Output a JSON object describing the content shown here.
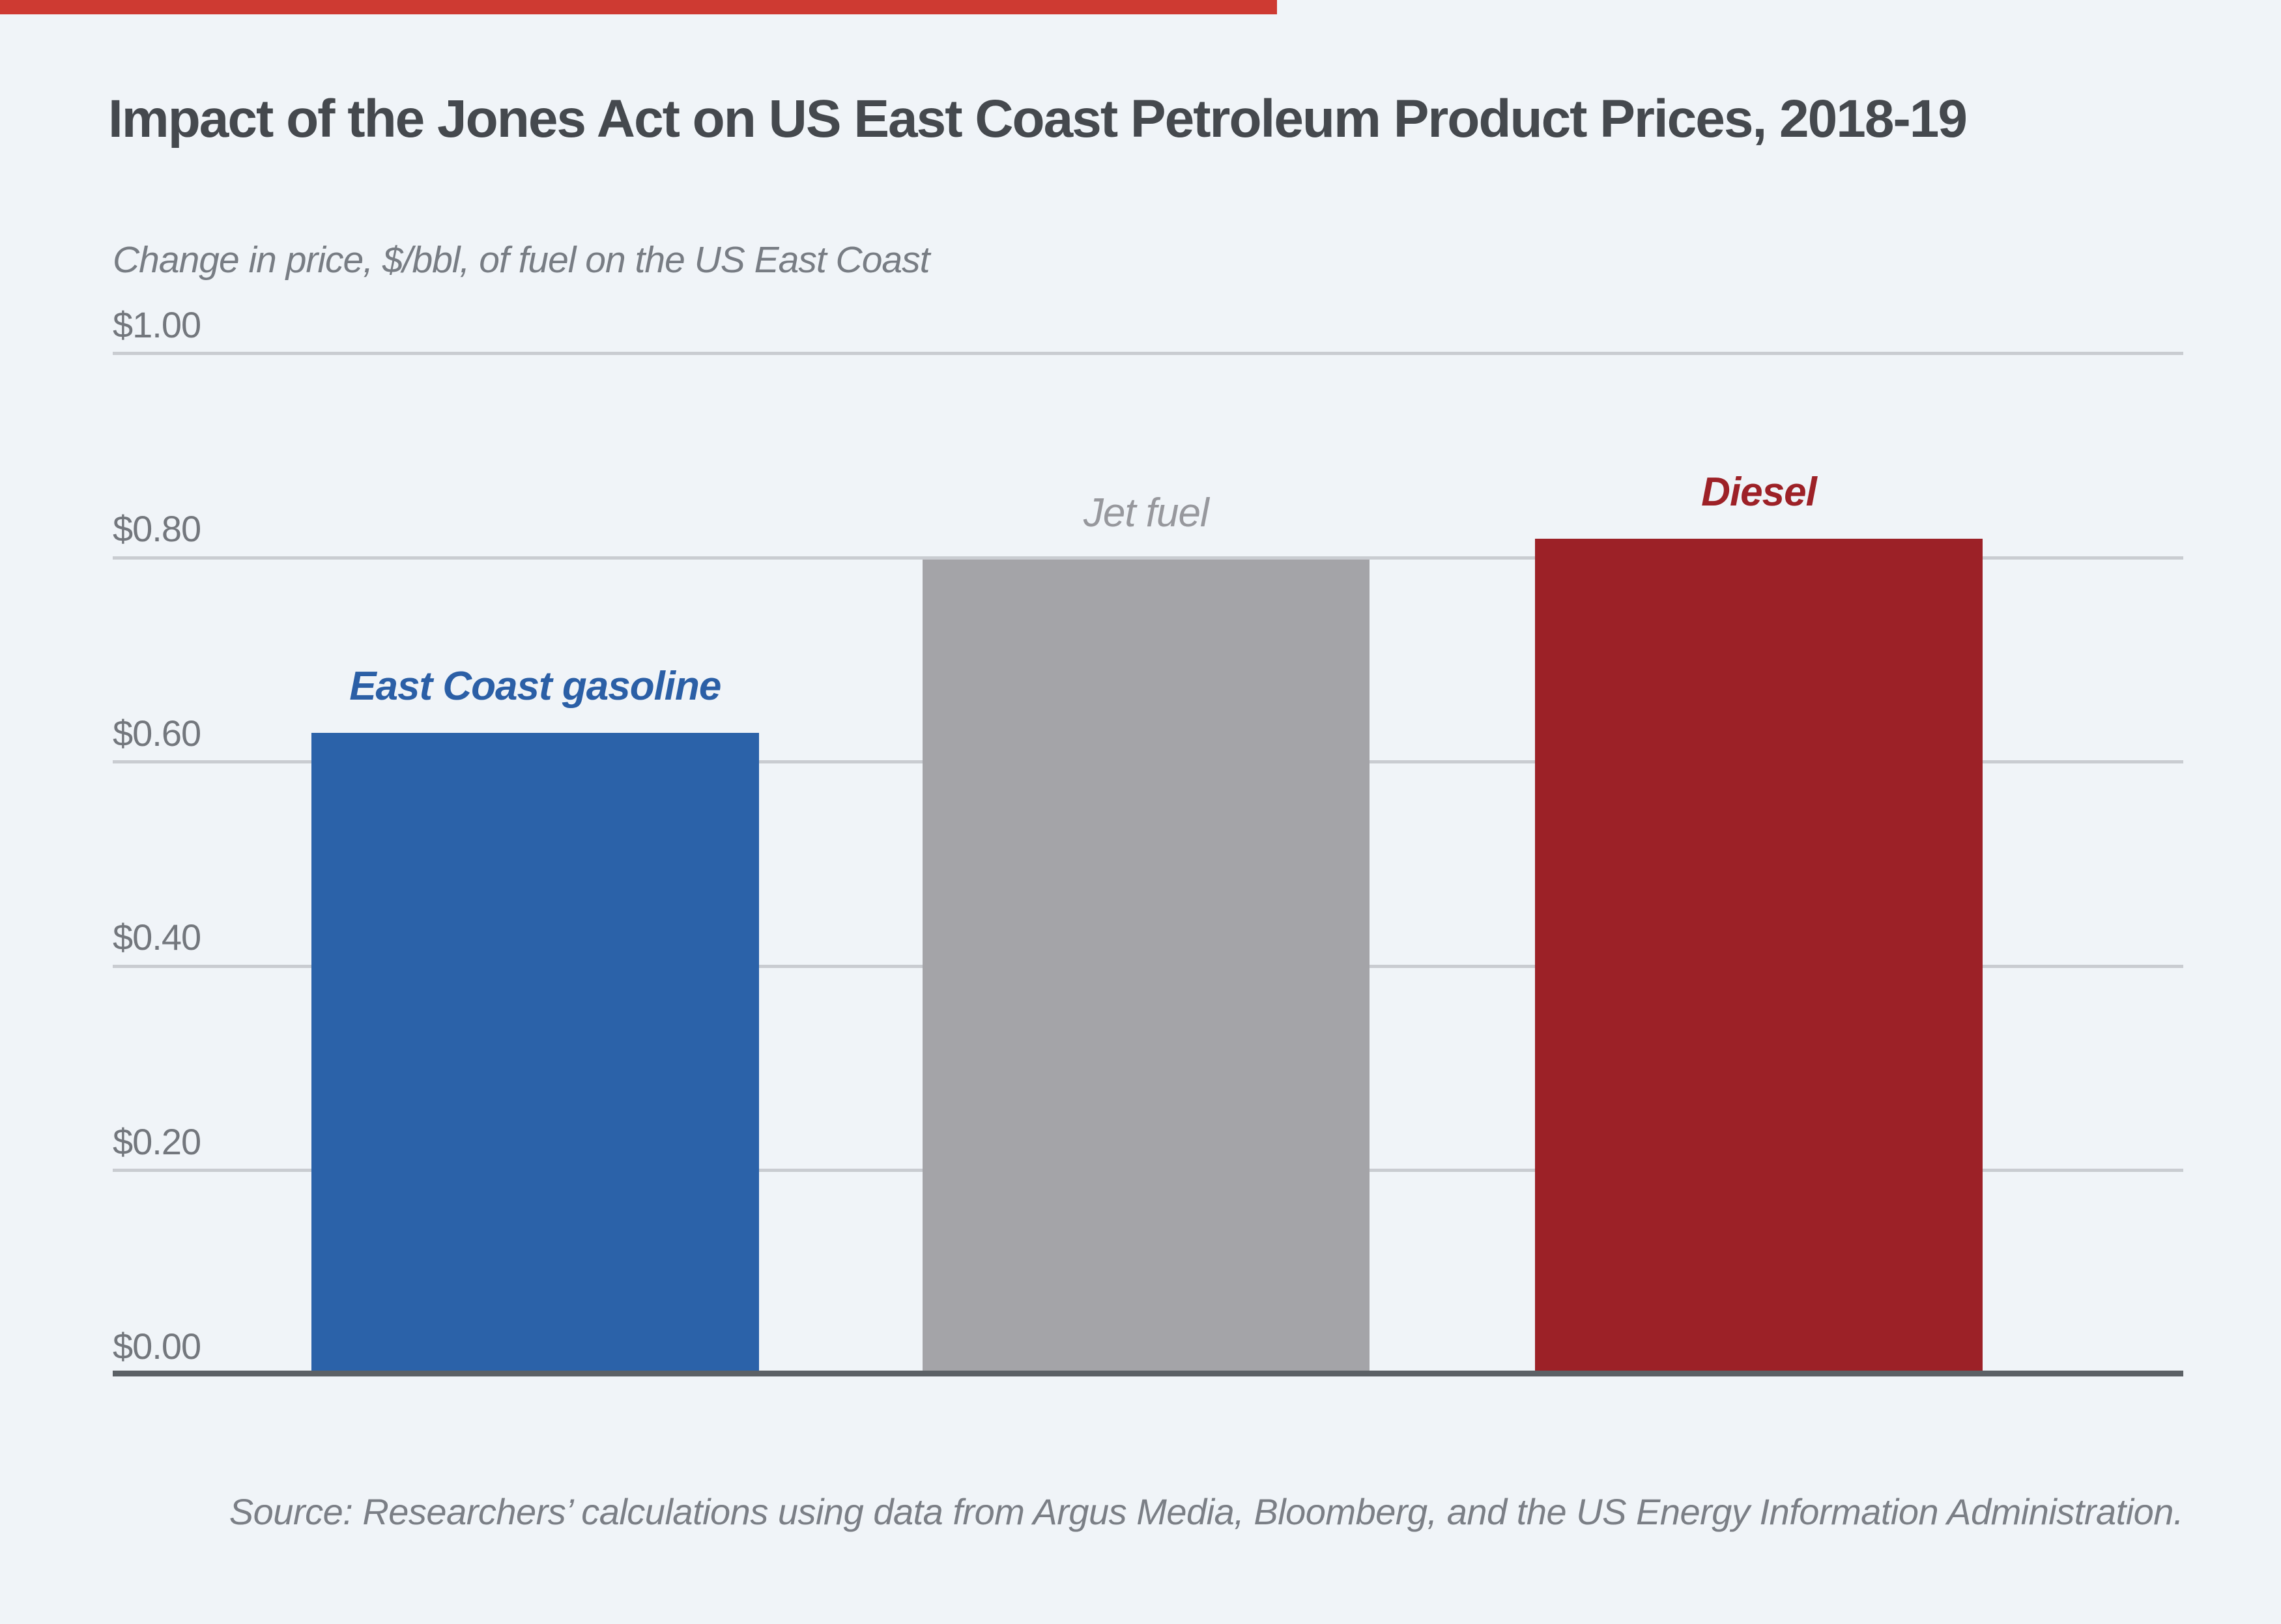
{
  "page": {
    "background": "#f0f4f8",
    "accent_stripe_color": "#ce3a32"
  },
  "chart_data": {
    "type": "bar",
    "title": "Impact of the Jones Act on US East Coast Petroleum Product Prices, 2018-19",
    "subtitle": "Change in price, $/bbl, of fuel on the US East Coast",
    "categories": [
      "East Coast gasoline",
      "Jet fuel",
      "Diesel"
    ],
    "values": [
      0.63,
      0.8,
      0.82
    ],
    "bar_colors": [
      "#2b62a9",
      "#a4a4a8",
      "#9c2127"
    ],
    "label_colors": [
      "#2b5fa6",
      "#97989d",
      "#9d2127"
    ],
    "label_bold": [
      true,
      false,
      true
    ],
    "xlabel": "",
    "ylabel": "",
    "ylim": [
      0,
      1.0
    ],
    "yticks": [
      "$1.00",
      "$0.80",
      "$0.60",
      "$0.40",
      "$0.20",
      "$0.00"
    ],
    "ytick_values": [
      1.0,
      0.8,
      0.6,
      0.4,
      0.2,
      0.0
    ],
    "grid": true,
    "legend_position": "none",
    "bar_label_position": "above bars"
  },
  "source_note": "Source: Researchers’ calculations using data from Argus Media, Bloomberg, and the US Energy Information Administration."
}
